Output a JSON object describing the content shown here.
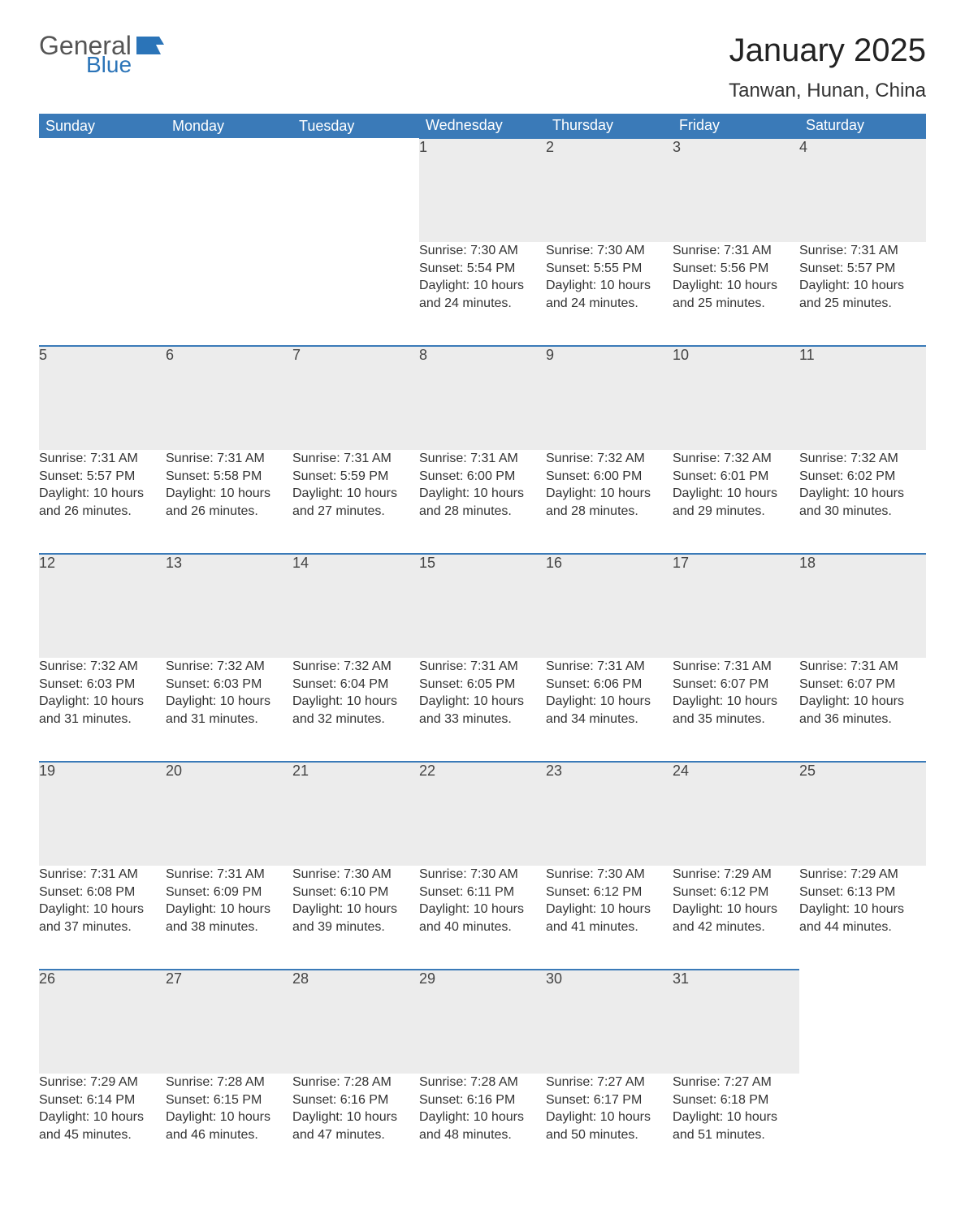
{
  "logo": {
    "text1": "General",
    "text2": "Blue",
    "flag_color": "#2b74b8"
  },
  "title": "January 2025",
  "location": "Tanwan, Hunan, China",
  "colors": {
    "header_bg": "#3a7ab8",
    "header_text": "#ffffff",
    "daynum_bg": "#ececec",
    "daynum_border": "#3a7ab8",
    "body_text": "#333333",
    "page_bg": "#ffffff"
  },
  "weekdays": [
    "Sunday",
    "Monday",
    "Tuesday",
    "Wednesday",
    "Thursday",
    "Friday",
    "Saturday"
  ],
  "weeks": [
    [
      null,
      null,
      null,
      {
        "n": "1",
        "sunrise": "7:30 AM",
        "sunset": "5:54 PM",
        "daylight": "10 hours and 24 minutes."
      },
      {
        "n": "2",
        "sunrise": "7:30 AM",
        "sunset": "5:55 PM",
        "daylight": "10 hours and 24 minutes."
      },
      {
        "n": "3",
        "sunrise": "7:31 AM",
        "sunset": "5:56 PM",
        "daylight": "10 hours and 25 minutes."
      },
      {
        "n": "4",
        "sunrise": "7:31 AM",
        "sunset": "5:57 PM",
        "daylight": "10 hours and 25 minutes."
      }
    ],
    [
      {
        "n": "5",
        "sunrise": "7:31 AM",
        "sunset": "5:57 PM",
        "daylight": "10 hours and 26 minutes."
      },
      {
        "n": "6",
        "sunrise": "7:31 AM",
        "sunset": "5:58 PM",
        "daylight": "10 hours and 26 minutes."
      },
      {
        "n": "7",
        "sunrise": "7:31 AM",
        "sunset": "5:59 PM",
        "daylight": "10 hours and 27 minutes."
      },
      {
        "n": "8",
        "sunrise": "7:31 AM",
        "sunset": "6:00 PM",
        "daylight": "10 hours and 28 minutes."
      },
      {
        "n": "9",
        "sunrise": "7:32 AM",
        "sunset": "6:00 PM",
        "daylight": "10 hours and 28 minutes."
      },
      {
        "n": "10",
        "sunrise": "7:32 AM",
        "sunset": "6:01 PM",
        "daylight": "10 hours and 29 minutes."
      },
      {
        "n": "11",
        "sunrise": "7:32 AM",
        "sunset": "6:02 PM",
        "daylight": "10 hours and 30 minutes."
      }
    ],
    [
      {
        "n": "12",
        "sunrise": "7:32 AM",
        "sunset": "6:03 PM",
        "daylight": "10 hours and 31 minutes."
      },
      {
        "n": "13",
        "sunrise": "7:32 AM",
        "sunset": "6:03 PM",
        "daylight": "10 hours and 31 minutes."
      },
      {
        "n": "14",
        "sunrise": "7:32 AM",
        "sunset": "6:04 PM",
        "daylight": "10 hours and 32 minutes."
      },
      {
        "n": "15",
        "sunrise": "7:31 AM",
        "sunset": "6:05 PM",
        "daylight": "10 hours and 33 minutes."
      },
      {
        "n": "16",
        "sunrise": "7:31 AM",
        "sunset": "6:06 PM",
        "daylight": "10 hours and 34 minutes."
      },
      {
        "n": "17",
        "sunrise": "7:31 AM",
        "sunset": "6:07 PM",
        "daylight": "10 hours and 35 minutes."
      },
      {
        "n": "18",
        "sunrise": "7:31 AM",
        "sunset": "6:07 PM",
        "daylight": "10 hours and 36 minutes."
      }
    ],
    [
      {
        "n": "19",
        "sunrise": "7:31 AM",
        "sunset": "6:08 PM",
        "daylight": "10 hours and 37 minutes."
      },
      {
        "n": "20",
        "sunrise": "7:31 AM",
        "sunset": "6:09 PM",
        "daylight": "10 hours and 38 minutes."
      },
      {
        "n": "21",
        "sunrise": "7:30 AM",
        "sunset": "6:10 PM",
        "daylight": "10 hours and 39 minutes."
      },
      {
        "n": "22",
        "sunrise": "7:30 AM",
        "sunset": "6:11 PM",
        "daylight": "10 hours and 40 minutes."
      },
      {
        "n": "23",
        "sunrise": "7:30 AM",
        "sunset": "6:12 PM",
        "daylight": "10 hours and 41 minutes."
      },
      {
        "n": "24",
        "sunrise": "7:29 AM",
        "sunset": "6:12 PM",
        "daylight": "10 hours and 42 minutes."
      },
      {
        "n": "25",
        "sunrise": "7:29 AM",
        "sunset": "6:13 PM",
        "daylight": "10 hours and 44 minutes."
      }
    ],
    [
      {
        "n": "26",
        "sunrise": "7:29 AM",
        "sunset": "6:14 PM",
        "daylight": "10 hours and 45 minutes."
      },
      {
        "n": "27",
        "sunrise": "7:28 AM",
        "sunset": "6:15 PM",
        "daylight": "10 hours and 46 minutes."
      },
      {
        "n": "28",
        "sunrise": "7:28 AM",
        "sunset": "6:16 PM",
        "daylight": "10 hours and 47 minutes."
      },
      {
        "n": "29",
        "sunrise": "7:28 AM",
        "sunset": "6:16 PM",
        "daylight": "10 hours and 48 minutes."
      },
      {
        "n": "30",
        "sunrise": "7:27 AM",
        "sunset": "6:17 PM",
        "daylight": "10 hours and 50 minutes."
      },
      {
        "n": "31",
        "sunrise": "7:27 AM",
        "sunset": "6:18 PM",
        "daylight": "10 hours and 51 minutes."
      },
      null
    ]
  ],
  "labels": {
    "sunrise": "Sunrise",
    "sunset": "Sunset",
    "daylight": "Daylight"
  }
}
